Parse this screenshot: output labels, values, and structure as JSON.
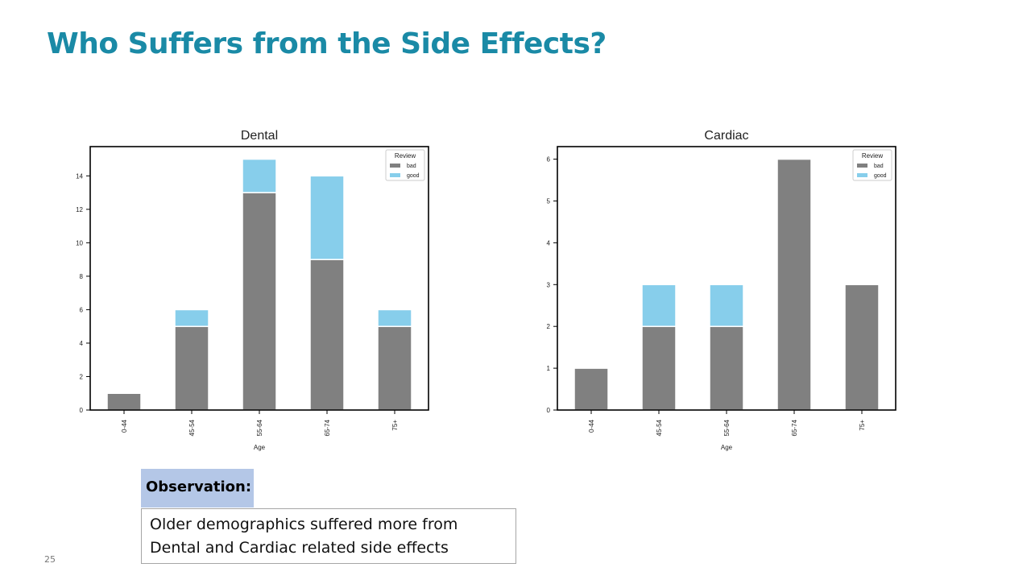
{
  "slide": {
    "title": "Who Suffers from the Side Effects?",
    "observation_label": "Observation:",
    "observation_text": "Older demographics suffered more from Dental and Cardiac related side effects",
    "page_number": "25"
  },
  "colors": {
    "title": "#1a8aa6",
    "bad": "#808080",
    "good": "#87ceeb"
  },
  "chart_data": [
    {
      "type": "bar",
      "stacked": true,
      "title": "Dental",
      "categories": [
        "0-44",
        "45-54",
        "55-64",
        "65-74",
        "75+"
      ],
      "series": [
        {
          "name": "bad",
          "values": [
            1,
            5,
            13,
            9,
            5
          ]
        },
        {
          "name": "good",
          "values": [
            0,
            1,
            2,
            5,
            1
          ]
        }
      ],
      "xlabel": "Age",
      "ylabel": "",
      "ylim": [
        0,
        15.75
      ],
      "yticks": [
        0,
        2,
        4,
        6,
        8,
        10,
        12,
        14
      ],
      "legend_title": "Review",
      "legend_position": "top-right",
      "grid": false
    },
    {
      "type": "bar",
      "stacked": true,
      "title": "Cardiac",
      "categories": [
        "0-44",
        "45-54",
        "55-64",
        "65-74",
        "75+"
      ],
      "series": [
        {
          "name": "bad",
          "values": [
            1,
            2,
            2,
            6,
            3
          ]
        },
        {
          "name": "good",
          "values": [
            0,
            1,
            1,
            0,
            0
          ]
        }
      ],
      "xlabel": "Age",
      "ylabel": "",
      "ylim": [
        0,
        6.3
      ],
      "yticks": [
        0,
        1,
        2,
        3,
        4,
        5,
        6
      ],
      "legend_title": "Review",
      "legend_position": "top-right",
      "grid": false
    }
  ]
}
